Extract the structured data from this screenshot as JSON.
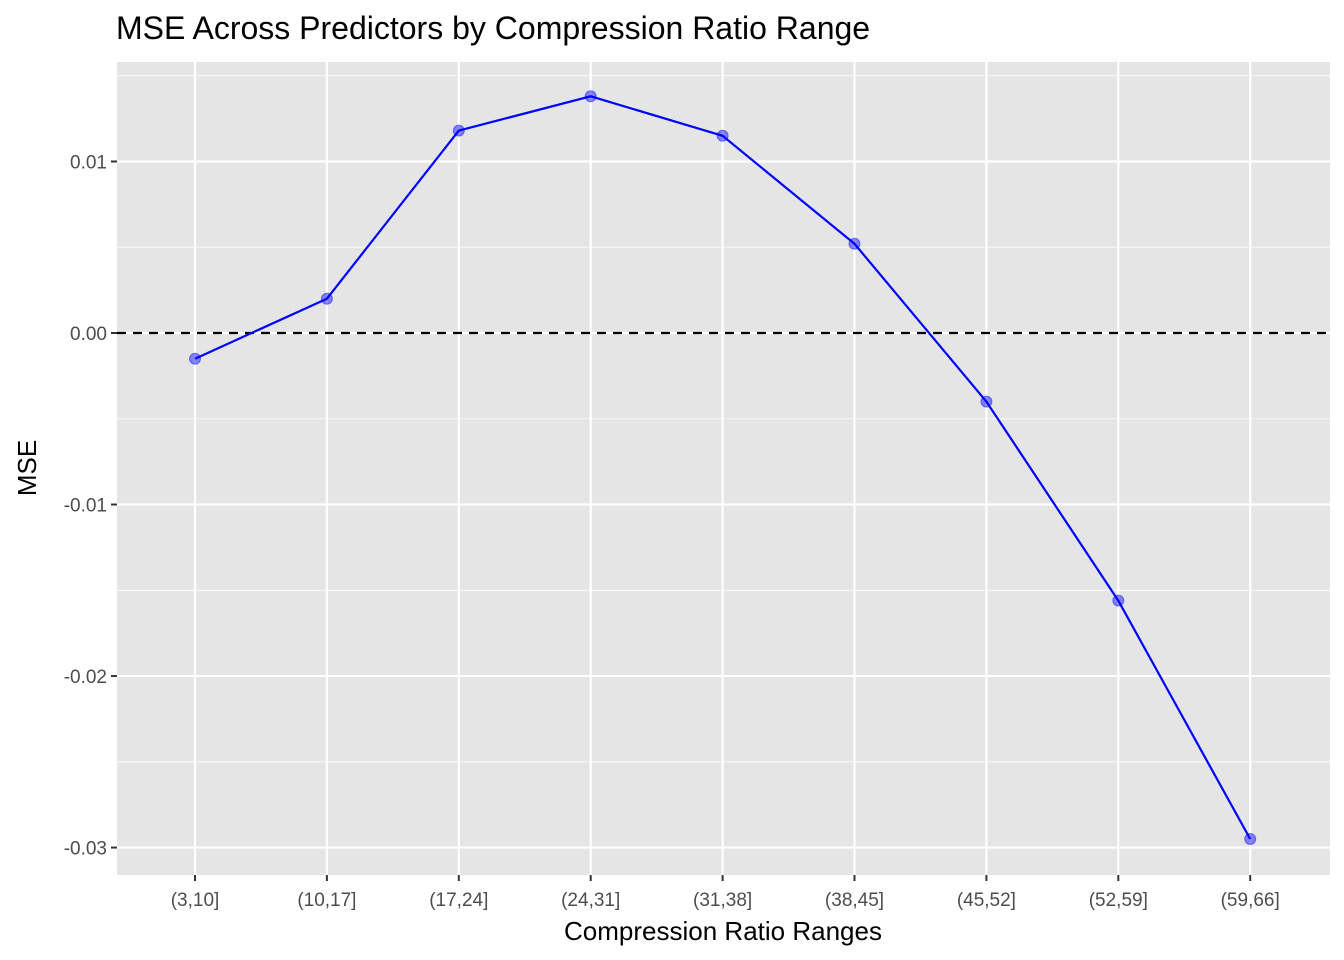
{
  "chart_data": {
    "type": "line",
    "title": "MSE Across Predictors by Compression Ratio Range",
    "xlabel": "Compression Ratio Ranges",
    "ylabel": "MSE",
    "categories": [
      "(3,10]",
      "(10,17]",
      "(17,24]",
      "(24,31]",
      "(31,38]",
      "(38,45]",
      "(45,52]",
      "(52,59]",
      "(59,66]"
    ],
    "series": [
      {
        "values": [
          -0.0015,
          0.002,
          0.0118,
          0.0138,
          0.0115,
          0.0052,
          -0.004,
          -0.0156,
          -0.0295
        ],
        "color": "#0000ff",
        "point_color": "#0000ff"
      }
    ],
    "ylim": [
      -0.0316,
      0.0158
    ],
    "y_ticks": [
      -0.03,
      -0.02,
      -0.01,
      0.0,
      0.01
    ],
    "y_tick_labels": [
      "-0.03",
      "-0.02",
      "-0.01",
      "0.00",
      "0.01"
    ],
    "reference_line": {
      "y": 0,
      "style": "dashed",
      "color": "#000000"
    },
    "grid": true,
    "legend": "none",
    "colors": {
      "panel_background": "#e5e5e5",
      "grid": "#ffffff",
      "tick_text": "#4d4d4d"
    }
  }
}
